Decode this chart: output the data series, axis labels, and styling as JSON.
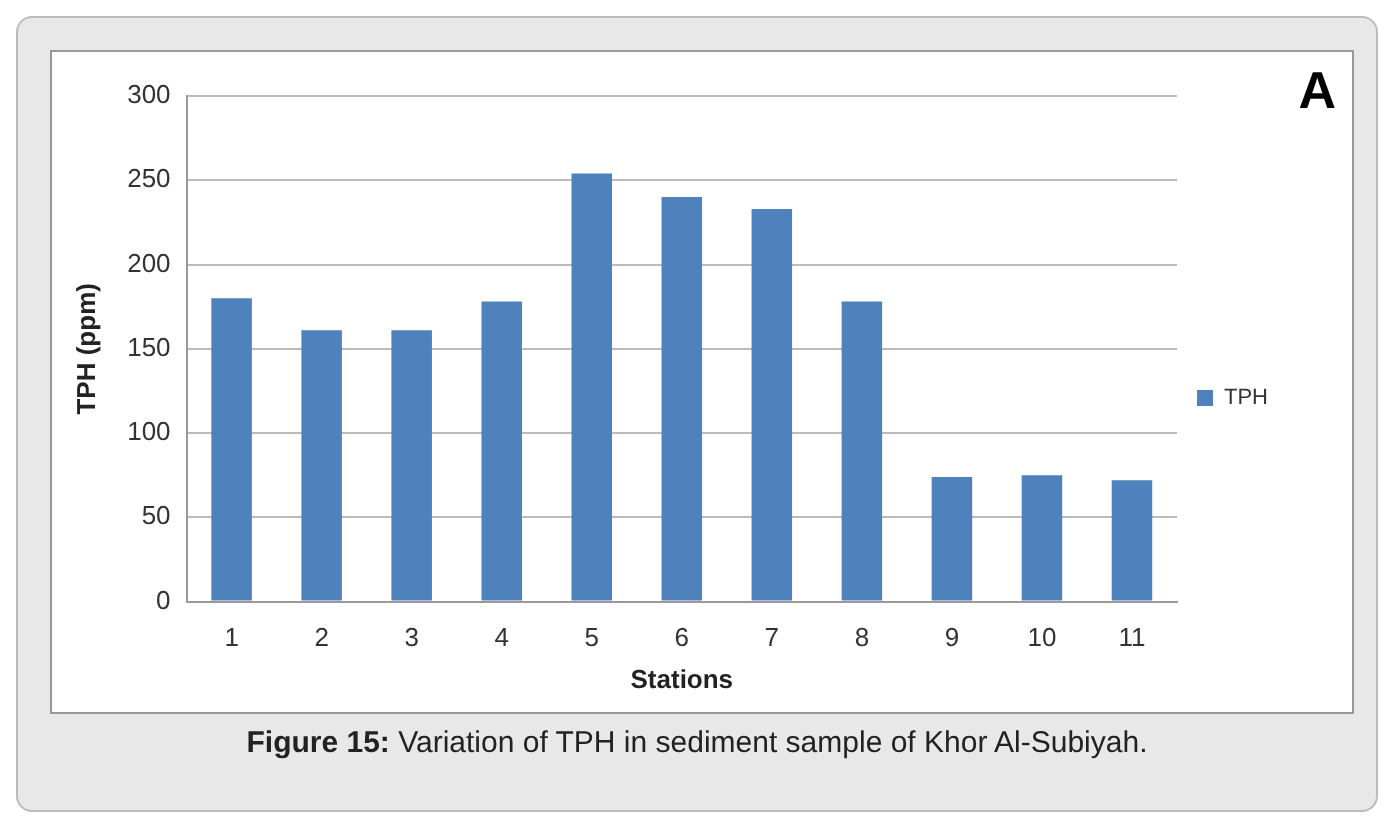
{
  "chart_data": {
    "type": "bar",
    "xlabel": "Stations",
    "ylabel": "TPH (ppm)",
    "categories": [
      "1",
      "2",
      "3",
      "4",
      "5",
      "6",
      "7",
      "8",
      "9",
      "10",
      "11"
    ],
    "series": [
      {
        "name": "TPH",
        "color": "#4f81bd",
        "values": [
          180,
          161,
          161,
          178,
          254,
          240,
          233,
          178,
          74,
          75,
          72
        ]
      }
    ],
    "ylim": [
      0,
      300
    ],
    "yticks": [
      0,
      50,
      100,
      150,
      200,
      250,
      300
    ],
    "grid": "y",
    "legend": "right",
    "annotations": [
      "A",
      "Figure 15: Variation of TPH in sediment sample of Khor Al-Subiyah."
    ]
  }
}
